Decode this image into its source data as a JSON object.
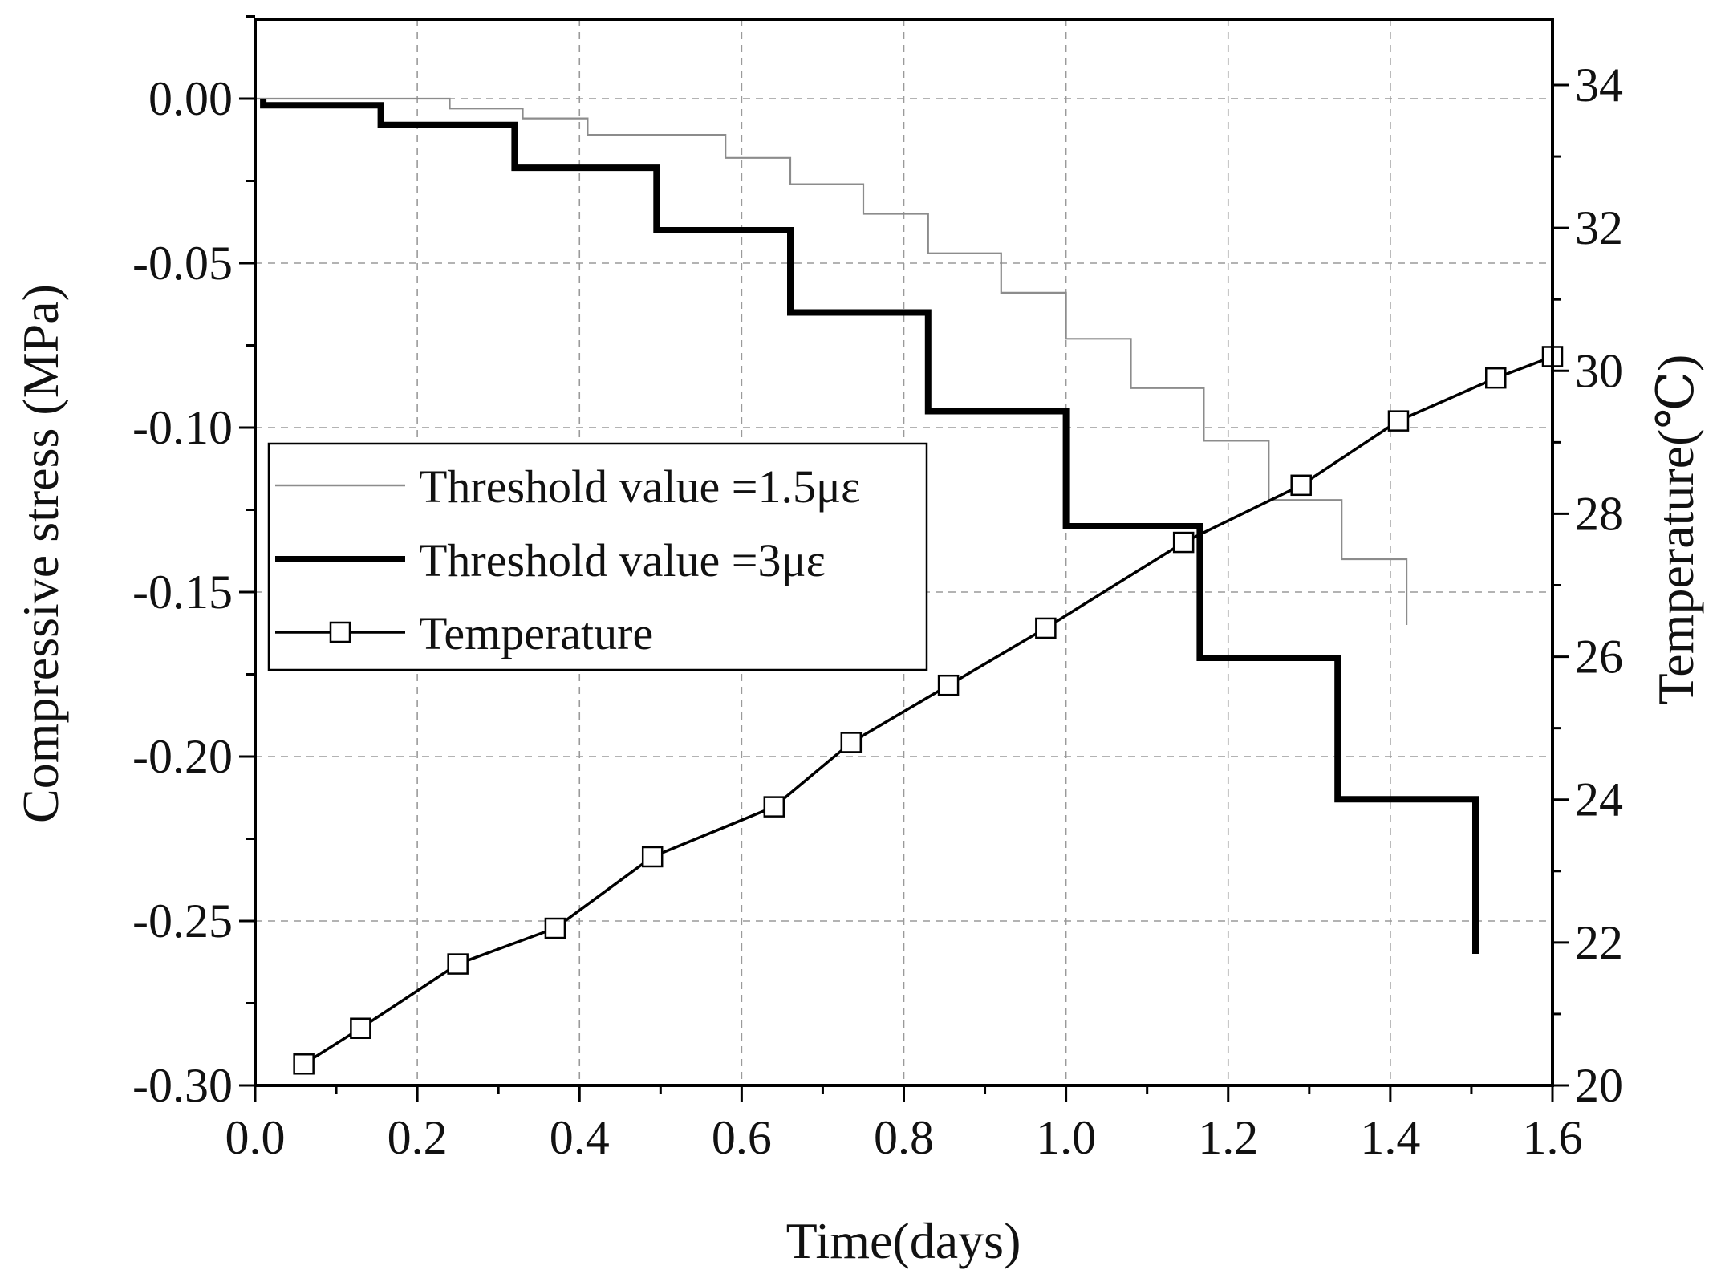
{
  "chart_data": {
    "type": "line",
    "xlabel": "Time(days)",
    "ylabel": "Compressive stress (MPa)",
    "y2label": "Temperature(℃)",
    "xlim": [
      0.0,
      1.6
    ],
    "ylim": [
      -0.3,
      0.025
    ],
    "y2lim": [
      20,
      35
    ],
    "grid": true,
    "x_ticks": [
      0.0,
      0.2,
      0.4,
      0.6,
      0.8,
      1.0,
      1.2,
      1.4,
      1.6
    ],
    "x_tick_labels": [
      "0.0",
      "0.2",
      "0.4",
      "0.6",
      "0.8",
      "1.0",
      "1.2",
      "1.4",
      "1.6"
    ],
    "y_ticks": [
      0.0,
      -0.05,
      -0.1,
      -0.15,
      -0.2,
      -0.25,
      -0.3
    ],
    "y_tick_labels": [
      "0.00",
      "-0.05",
      "-0.10",
      "-0.15",
      "-0.20",
      "-0.25",
      "-0.30"
    ],
    "y2_ticks": [
      20,
      22,
      24,
      26,
      28,
      30,
      32,
      34
    ],
    "y2_tick_labels": [
      "20",
      "22",
      "24",
      "26",
      "28",
      "30",
      "32",
      "34"
    ],
    "legend_position": "middle-left",
    "series": [
      {
        "name": "Threshold value =1.5με",
        "style": "thin-gray-step",
        "axis": "left",
        "x": [
          0.0,
          0.24,
          0.24,
          0.33,
          0.33,
          0.41,
          0.41,
          0.58,
          0.58,
          0.66,
          0.66,
          0.75,
          0.75,
          0.83,
          0.83,
          0.92,
          0.92,
          1.0,
          1.0,
          1.08,
          1.08,
          1.17,
          1.17,
          1.25,
          1.25,
          1.34,
          1.34,
          1.42,
          1.42
        ],
        "values": [
          0.0,
          0.0,
          -0.003,
          -0.003,
          -0.006,
          -0.006,
          -0.011,
          -0.011,
          -0.018,
          -0.018,
          -0.026,
          -0.026,
          -0.035,
          -0.035,
          -0.047,
          -0.047,
          -0.059,
          -0.059,
          -0.073,
          -0.073,
          -0.088,
          -0.088,
          -0.104,
          -0.104,
          -0.122,
          -0.122,
          -0.14,
          -0.14,
          -0.16
        ]
      },
      {
        "name": "Threshold value =3με",
        "style": "thick-black-step",
        "axis": "left",
        "x": [
          0.01,
          0.01,
          0.155,
          0.155,
          0.32,
          0.32,
          0.495,
          0.495,
          0.66,
          0.66,
          0.83,
          0.83,
          1.0,
          1.0,
          1.165,
          1.165,
          1.335,
          1.335,
          1.505,
          1.505
        ],
        "values": [
          0.0,
          -0.002,
          -0.002,
          -0.008,
          -0.008,
          -0.021,
          -0.021,
          -0.04,
          -0.04,
          -0.065,
          -0.065,
          -0.095,
          -0.095,
          -0.13,
          -0.13,
          -0.17,
          -0.17,
          -0.213,
          -0.213,
          -0.26
        ]
      },
      {
        "name": "Temperature",
        "style": "black-line-square-markers",
        "axis": "right",
        "x": [
          0.06,
          0.13,
          0.25,
          0.37,
          0.49,
          0.64,
          0.735,
          0.855,
          0.975,
          1.145,
          1.29,
          1.41,
          1.53,
          1.6
        ],
        "values": [
          20.3,
          20.8,
          21.7,
          22.2,
          23.2,
          23.9,
          24.8,
          25.6,
          26.4,
          27.6,
          28.4,
          29.3,
          29.9,
          30.2
        ]
      }
    ]
  }
}
